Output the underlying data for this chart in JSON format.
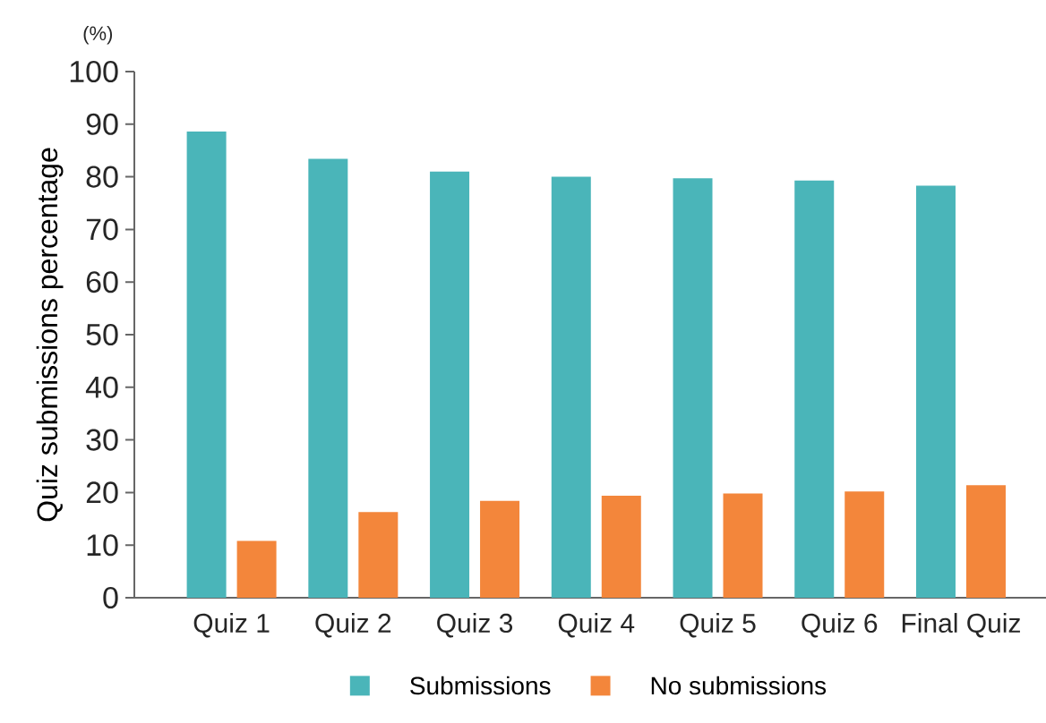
{
  "chart_data": {
    "type": "bar",
    "ylabel": "Quiz submissions percentage",
    "annotations": [
      "(%)"
    ],
    "categories": [
      "Quiz 1",
      "Quiz 2",
      "Quiz 3",
      "Quiz 4",
      "Quiz 5",
      "Quiz 6",
      "Final Quiz"
    ],
    "series": [
      {
        "name": "Submissions",
        "color": "#4ab5b9",
        "values": [
          88.6,
          83.4,
          81.0,
          80.0,
          79.7,
          79.3,
          78.3
        ]
      },
      {
        "name": "No submissions",
        "color": "#f3863b",
        "values": [
          10.8,
          16.3,
          18.4,
          19.4,
          19.8,
          20.2,
          21.4
        ]
      }
    ],
    "ylim": [
      0,
      100
    ],
    "yticks": [
      0,
      10,
      20,
      30,
      40,
      50,
      60,
      70,
      80,
      90,
      100
    ],
    "grid": false,
    "legend": "bottom"
  }
}
